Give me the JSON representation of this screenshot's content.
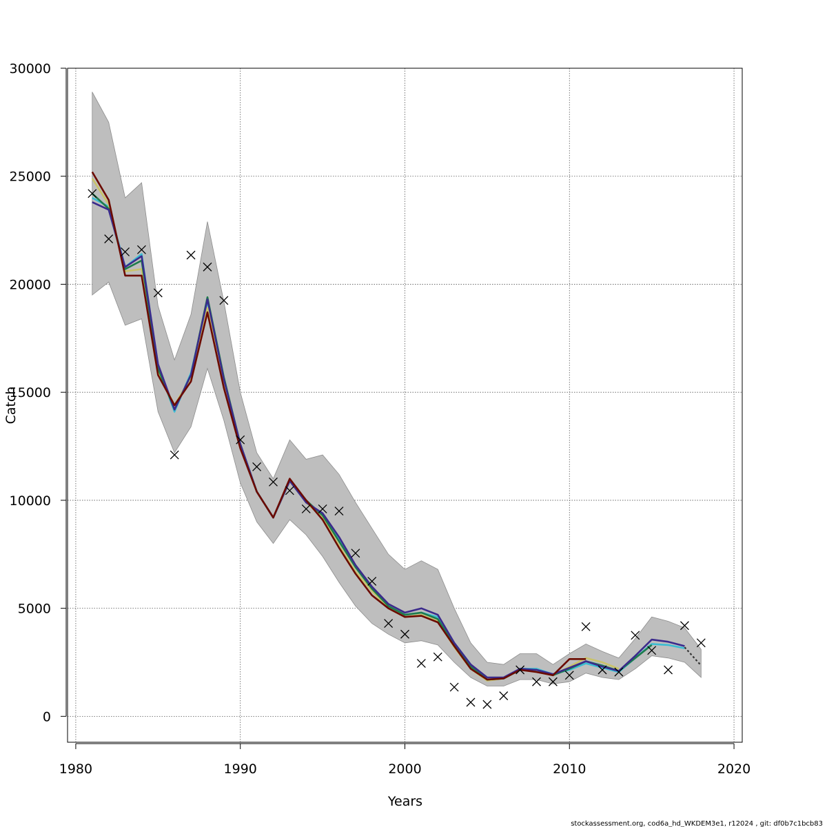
{
  "chart_data": {
    "type": "line",
    "xlabel": "Years",
    "ylabel": "Catch",
    "xlim": [
      1979.5,
      2020.5
    ],
    "ylim": [
      -1200,
      30000
    ],
    "xticks": [
      1980,
      1990,
      2000,
      2010,
      2020
    ],
    "yticks": [
      0,
      5000,
      10000,
      15000,
      20000,
      25000,
      30000
    ],
    "grid": true,
    "footer": "stockassessment.org, cod6a_hd_WKDEM3e1, r12024 , git: df0b7c1bcb83",
    "band": {
      "color": "#bebebe",
      "x": [
        1981,
        1982,
        1983,
        1984,
        1985,
        1986,
        1987,
        1988,
        1989,
        1990,
        1991,
        1992,
        1993,
        1994,
        1995,
        1996,
        1997,
        1998,
        1999,
        2000,
        2001,
        2002,
        2003,
        2004,
        2005,
        2006,
        2007,
        2008,
        2009,
        2010,
        2011,
        2012,
        2013,
        2014,
        2015,
        2016,
        2017,
        2018
      ],
      "upper": [
        28900,
        27500,
        24000,
        24700,
        19000,
        16500,
        18600,
        22900,
        19200,
        15000,
        12200,
        11000,
        12800,
        11900,
        12100,
        11200,
        9900,
        8700,
        7500,
        6800,
        7200,
        6800,
        5000,
        3400,
        2500,
        2400,
        2900,
        2900,
        2400,
        2900,
        3350,
        3000,
        2700,
        3600,
        4600,
        4400,
        4100,
        3100
      ],
      "lower": [
        19500,
        20100,
        18100,
        18400,
        14100,
        12200,
        13400,
        16100,
        13700,
        10800,
        9000,
        8000,
        9100,
        8400,
        7400,
        6200,
        5100,
        4300,
        3800,
        3400,
        3500,
        3300,
        2500,
        1800,
        1400,
        1400,
        1700,
        1700,
        1500,
        1600,
        2000,
        1800,
        1700,
        2200,
        2800,
        2700,
        2500,
        1800
      ]
    },
    "series": [
      {
        "color": "#3bbcd3",
        "x": [
          1981,
          1982,
          1983,
          1984,
          1985,
          1986,
          1987,
          1988,
          1989,
          1990,
          1991,
          1992,
          1993,
          1994,
          1995,
          1996,
          1997,
          1998,
          1999,
          2000,
          2001,
          2002,
          2003,
          2004,
          2005,
          2006,
          2007,
          2008,
          2009,
          2010,
          2011,
          2012,
          2013,
          2014,
          2015,
          2016,
          2017
        ],
        "values": [
          24000,
          23600,
          20800,
          21400,
          16200,
          14100,
          15900,
          19200,
          15600,
          12600,
          10400,
          9200,
          10900,
          9900,
          9300,
          8200,
          6900,
          5900,
          5100,
          4700,
          4800,
          4600,
          3400,
          2400,
          1700,
          1750,
          2200,
          2200,
          1950,
          2150,
          2450,
          2250,
          2050,
          2700,
          3350,
          3300,
          3150
        ]
      },
      {
        "color": "#c9c36a",
        "x": [
          1981,
          1982,
          1983,
          1984,
          1985,
          1986,
          1987,
          1988,
          1989,
          1990,
          1991,
          1992,
          1993,
          1994,
          1995,
          1996,
          1997,
          1998,
          1999,
          2000,
          2001,
          2002,
          2003,
          2004,
          2005,
          2006,
          2007,
          2008,
          2009,
          2010,
          2011,
          2012,
          2013
        ],
        "values": [
          24900,
          23700,
          20600,
          20700,
          15900,
          14400,
          15700,
          18900,
          15400,
          12500,
          10400,
          9200,
          10900,
          9900,
          9200,
          7900,
          6700,
          5800,
          5000,
          4600,
          4700,
          4400,
          3200,
          2200,
          1650,
          1750,
          2150,
          2150,
          1900,
          2300,
          2700,
          2500,
          2200
        ]
      },
      {
        "color": "#1e7b4c",
        "x": [
          1981,
          1982,
          1983,
          1984,
          1985,
          1986,
          1987,
          1988,
          1989,
          1990,
          1991,
          1992,
          1993,
          1994,
          1995,
          1996,
          1997,
          1998,
          1999,
          2000,
          2001,
          2002,
          2003,
          2004,
          2005,
          2006,
          2007,
          2008,
          2009,
          2010,
          2011,
          2012,
          2013,
          2014,
          2015
        ],
        "values": [
          24200,
          23500,
          20700,
          21100,
          16100,
          14200,
          15800,
          19400,
          15700,
          12600,
          10400,
          9200,
          10900,
          10000,
          9300,
          8100,
          6900,
          5900,
          5100,
          4700,
          4800,
          4500,
          3300,
          2300,
          1700,
          1750,
          2150,
          2150,
          1900,
          2200,
          2550,
          2350,
          2100,
          2700,
          3300
        ]
      },
      {
        "color": "#3b2a8c",
        "x": [
          1981,
          1982,
          1983,
          1984,
          1985,
          1986,
          1987,
          1988,
          1989,
          1990,
          1991,
          1992,
          1993,
          1994,
          1995,
          1996,
          1997,
          1998,
          1999,
          2000,
          2001,
          2002,
          2003,
          2004,
          2005,
          2006,
          2007,
          2008,
          2009,
          2010,
          2011,
          2012,
          2013,
          2014,
          2015,
          2016,
          2017
        ],
        "values": [
          23800,
          23450,
          20800,
          21300,
          16300,
          14200,
          15800,
          19300,
          15600,
          12600,
          10400,
          9200,
          10900,
          9900,
          9400,
          8300,
          7000,
          6000,
          5200,
          4800,
          5000,
          4700,
          3400,
          2400,
          1800,
          1800,
          2200,
          2150,
          1950,
          2250,
          2550,
          2300,
          2100,
          2800,
          3550,
          3450,
          3250
        ]
      },
      {
        "color": "#6b0a00",
        "x": [
          1981,
          1982,
          1983,
          1984,
          1985,
          1986,
          1987,
          1988,
          1989,
          1990,
          1991,
          1992,
          1993,
          1994,
          1995,
          1996,
          1997,
          1998,
          1999,
          2000,
          2001,
          2002,
          2003,
          2004,
          2005,
          2006,
          2007,
          2008,
          2009,
          2010,
          2011
        ],
        "values": [
          25200,
          23900,
          20400,
          20400,
          15800,
          14400,
          15500,
          18700,
          15200,
          12400,
          10400,
          9200,
          11000,
          10000,
          9100,
          7800,
          6600,
          5600,
          5000,
          4600,
          4650,
          4350,
          3250,
          2200,
          1700,
          1750,
          2150,
          2050,
          1900,
          2650,
          2650
        ]
      },
      {
        "color": "#333333",
        "dashed": true,
        "x": [
          2017,
          2018
        ],
        "values": [
          3200,
          2350
        ]
      }
    ],
    "observed": {
      "marker": "x",
      "x": [
        1981,
        1982,
        1983,
        1984,
        1985,
        1986,
        1987,
        1988,
        1989,
        1990,
        1991,
        1992,
        1993,
        1994,
        1995,
        1996,
        1997,
        1998,
        1999,
        2000,
        2001,
        2002,
        2003,
        2004,
        2005,
        2006,
        2007,
        2008,
        2009,
        2010,
        2011,
        2012,
        2013,
        2014,
        2015,
        2016,
        2017,
        2018
      ],
      "values": [
        24200,
        22100,
        21500,
        21600,
        19600,
        12100,
        21350,
        20800,
        19250,
        12800,
        11550,
        10850,
        10450,
        9600,
        9600,
        9500,
        7550,
        6250,
        4300,
        3800,
        2450,
        2750,
        1350,
        650,
        550,
        950,
        2150,
        1600,
        1600,
        1900,
        4150,
        2150,
        2050,
        3750,
        3050,
        2150,
        4200,
        3400
      ]
    }
  }
}
